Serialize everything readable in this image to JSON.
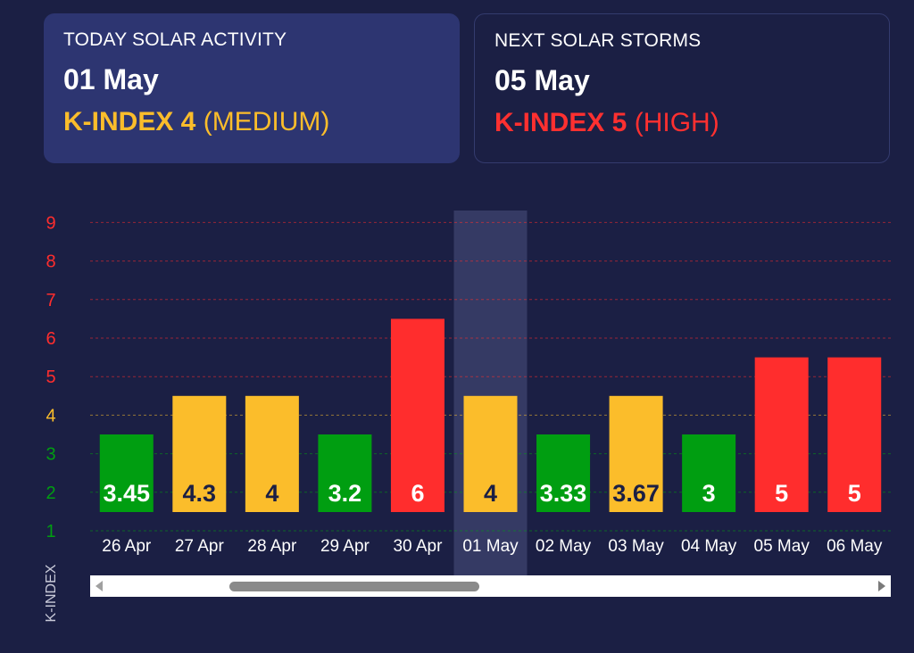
{
  "today_card": {
    "label": "TODAY SOLAR ACTIVITY",
    "date": "01 May",
    "kindex": "K-INDEX 4",
    "level": "(MEDIUM)",
    "color": "#fbbd2b"
  },
  "next_card": {
    "label": "NEXT SOLAR STORMS",
    "date": "05 May",
    "kindex": "K-INDEX 5",
    "level": "(HIGH)",
    "color": "#ff3030"
  },
  "colors": {
    "low": "#009e11",
    "medium": "#fbbd2b",
    "high": "#ff2d2d",
    "highlight": "#3a3f6a"
  },
  "chart_data": {
    "type": "bar",
    "ylabel": "K-INDEX",
    "y_ticks": [
      "1",
      "2",
      "3",
      "4",
      "5",
      "6",
      "7",
      "8",
      "9"
    ],
    "ylim": [
      1,
      9
    ],
    "categories": [
      "26 Apr",
      "27 Apr",
      "28 Apr",
      "29 Apr",
      "30 Apr",
      "01 May",
      "02 May",
      "03 May",
      "04 May",
      "05 May",
      "06 May"
    ],
    "values": [
      3.45,
      4.3,
      4,
      3.2,
      6,
      4,
      3.33,
      3.67,
      3,
      5,
      5
    ],
    "labels": [
      "3.45",
      "4.3",
      "4",
      "3.2",
      "6",
      "4",
      "3.33",
      "3.67",
      "3",
      "5",
      "5"
    ],
    "levels": [
      "low",
      "medium",
      "medium",
      "low",
      "high",
      "medium",
      "low",
      "medium",
      "low",
      "high",
      "high"
    ],
    "highlighted_category": "01 May",
    "grid": true
  }
}
